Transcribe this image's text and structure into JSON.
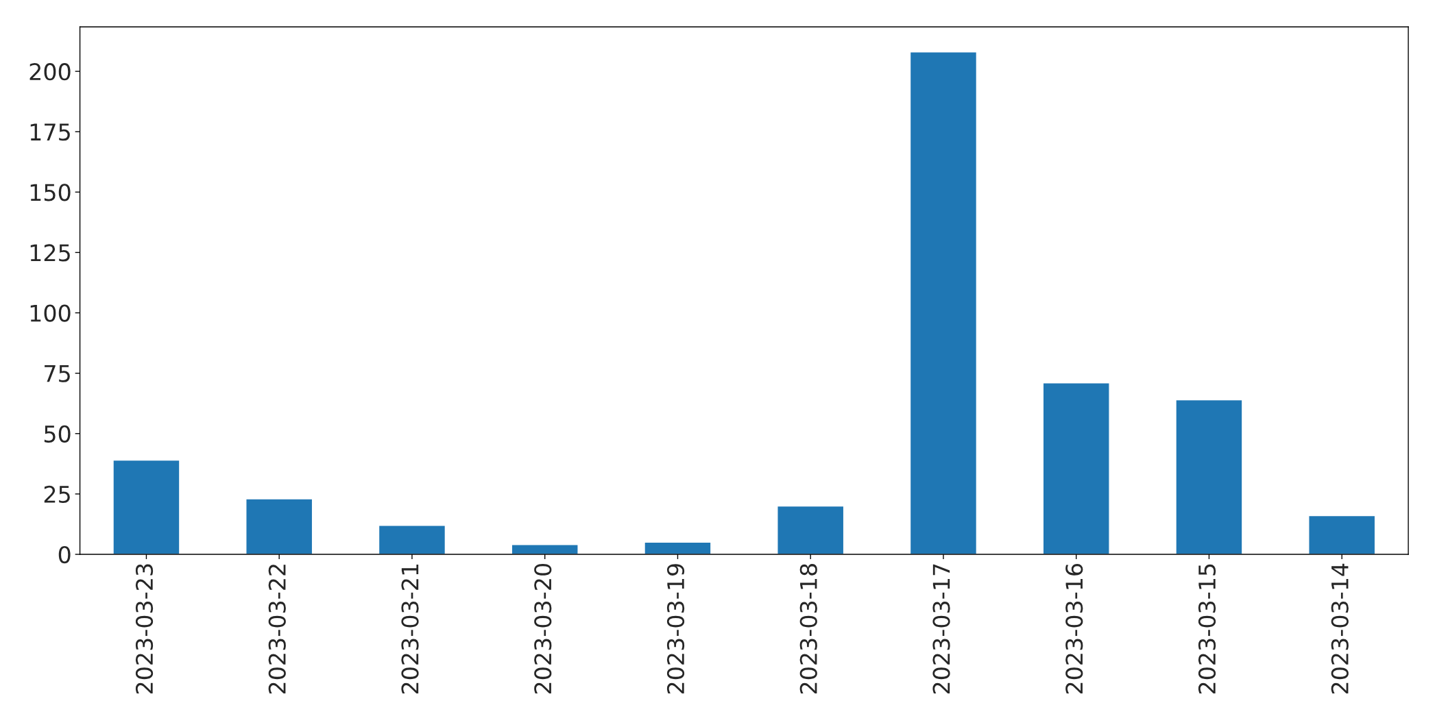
{
  "chart_data": {
    "type": "bar",
    "categories": [
      "2023-03-23",
      "2023-03-22",
      "2023-03-21",
      "2023-03-20",
      "2023-03-19",
      "2023-03-18",
      "2023-03-17",
      "2023-03-16",
      "2023-03-15",
      "2023-03-14"
    ],
    "values": [
      39,
      23,
      12,
      4,
      5,
      20,
      208,
      71,
      64,
      16
    ],
    "color": "#1f77b4",
    "ylim": [
      0,
      218.4
    ],
    "yticks": [
      0,
      25,
      50,
      75,
      100,
      125,
      150,
      175,
      200
    ],
    "grid": false,
    "legend": false
  }
}
